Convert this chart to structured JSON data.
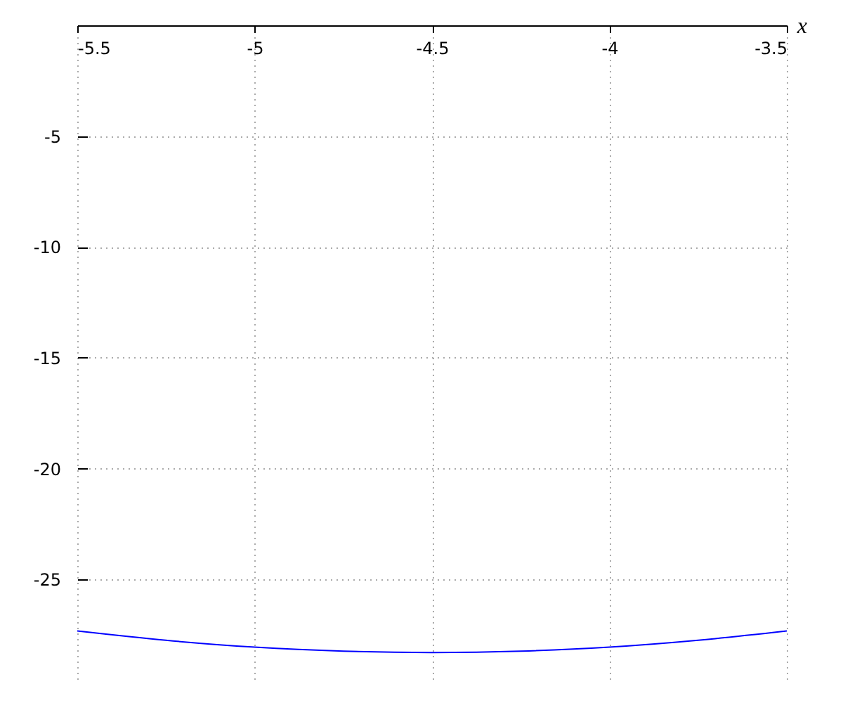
{
  "chart_data": {
    "type": "line",
    "xlabel": "x",
    "x": [
      -5.5,
      -5.25,
      -5.0,
      -4.75,
      -4.5,
      -4.25,
      -4.0,
      -3.75,
      -3.5
    ],
    "series": [
      {
        "color": "#0000ff",
        "values": [
          -27.33,
          -27.75,
          -28.06,
          -28.24,
          -28.3,
          -28.24,
          -28.06,
          -27.75,
          -27.33
        ]
      }
    ],
    "xlim": [
      -5.5,
      -3.5
    ],
    "xticks": [
      -5.5,
      -5,
      -4.5,
      -4,
      -3.5
    ],
    "ylim": [
      -29.5,
      0
    ],
    "yticks": [
      -25,
      -20,
      -15,
      -10,
      -5
    ],
    "grid": true,
    "line_style": "solid",
    "marker": "none"
  }
}
